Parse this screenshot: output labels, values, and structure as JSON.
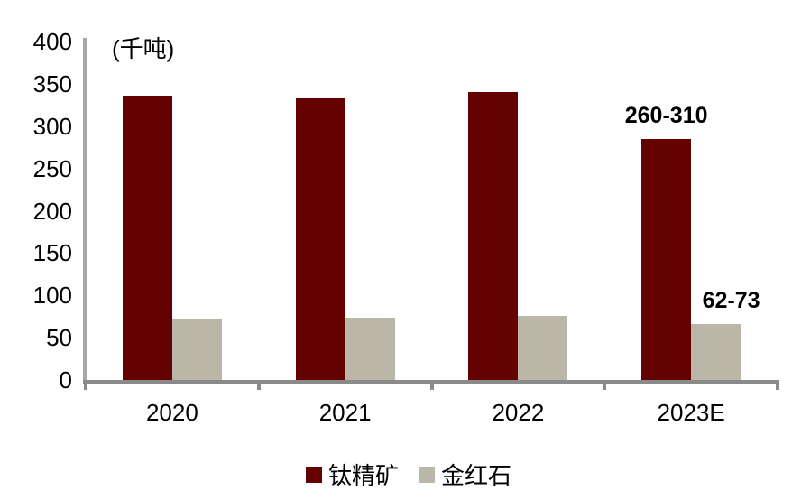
{
  "chart_data": {
    "type": "bar",
    "title": "",
    "unit_label": "(千吨)",
    "categories": [
      "2020",
      "2021",
      "2022",
      "2023E"
    ],
    "series": [
      {
        "name": "钛精矿",
        "key": "titanium-concentrate",
        "color": "#640202",
        "values": [
          336,
          333,
          340,
          285
        ]
      },
      {
        "name": "金红石",
        "key": "rutile",
        "color": "#BAB7A8",
        "values": [
          73,
          74,
          76,
          66
        ]
      }
    ],
    "annotations": [
      {
        "text": "260-310",
        "series_index": 0,
        "category_index": 3
      },
      {
        "text": "62-73",
        "series_index": 1,
        "category_index": 3
      }
    ],
    "y_axis": {
      "min": 0,
      "max": 400,
      "step": 50,
      "ticks": [
        0,
        50,
        100,
        150,
        200,
        250,
        300,
        350,
        400
      ]
    },
    "legend": [
      {
        "label": "钛精矿",
        "color": "#640202"
      },
      {
        "label": "金红石",
        "color": "#BAB7A8"
      }
    ],
    "legend_position": "bottom",
    "grid": false,
    "axis_color": "#8A8A8A",
    "text_color": "#000000"
  }
}
